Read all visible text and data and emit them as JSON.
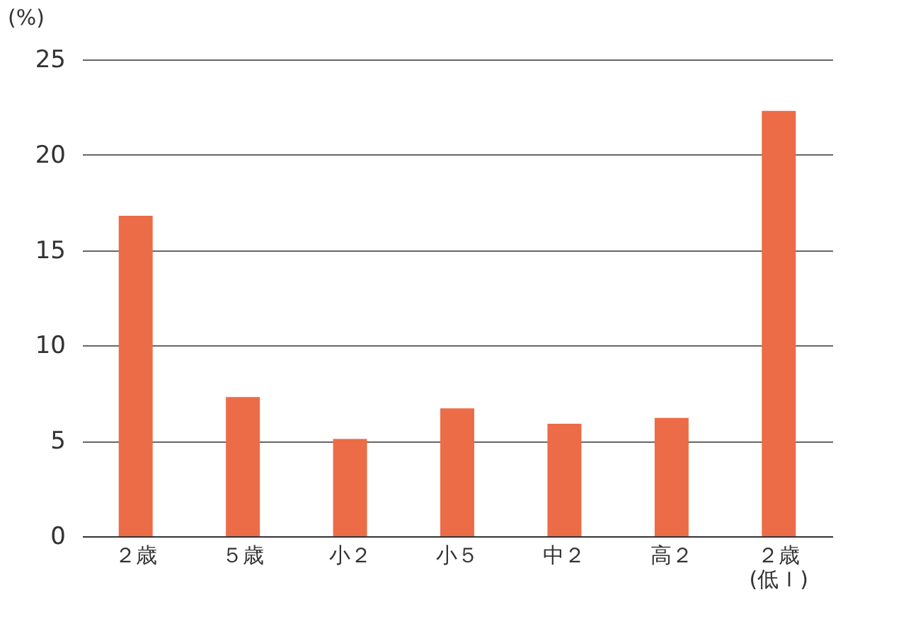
{
  "chart_data": {
    "type": "bar",
    "ylabel": "(%)",
    "categories": [
      "２歳",
      "５歳",
      "小２",
      "小５",
      "中２",
      "高２",
      "２歳\n(低Ｉ)"
    ],
    "values": [
      16.8,
      7.3,
      5.1,
      6.7,
      5.9,
      6.2,
      22.3
    ],
    "color": "#ec6c47",
    "ylim": [
      0,
      25
    ],
    "yticks": [
      0,
      5,
      10,
      15,
      20,
      25
    ],
    "grid": "y"
  }
}
